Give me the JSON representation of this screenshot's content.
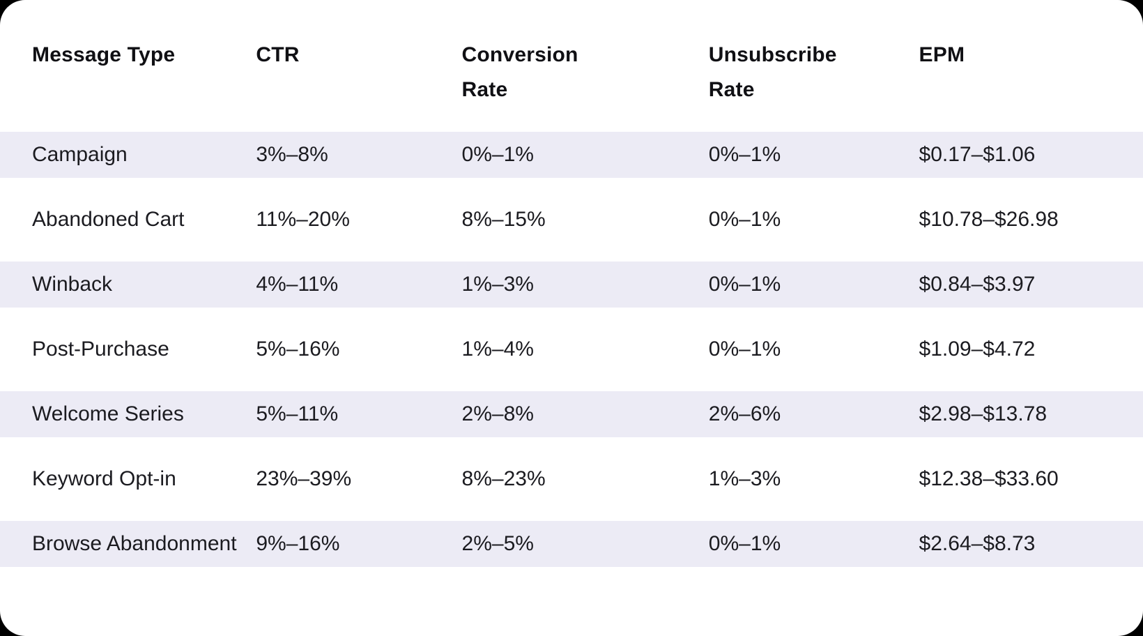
{
  "colors": {
    "page_background": "#000000",
    "card_background": "#ffffff",
    "row_stripe": "#ECEBF5",
    "header_text": "#101014",
    "body_text": "#1B1B20"
  },
  "header_display": {
    "message_type": "Message Type",
    "ctr": "CTR",
    "conversion_rate": "Conversion\nRate",
    "unsubscribe_rate": "Unsubscribe\nRate",
    "epm": "EPM"
  },
  "chart_data": {
    "type": "table",
    "columns": [
      "Message Type",
      "CTR",
      "Conversion Rate",
      "Unsubscribe Rate",
      "EPM"
    ],
    "rows": [
      [
        "Campaign",
        "3%–8%",
        "0%–1%",
        "0%–1%",
        "$0.17–$1.06"
      ],
      [
        "Abandoned Cart",
        "11%–20%",
        "8%–15%",
        "0%–1%",
        "$10.78–$26.98"
      ],
      [
        "Winback",
        "4%–11%",
        "1%–3%",
        "0%–1%",
        "$0.84–$3.97"
      ],
      [
        "Post-Purchase",
        "5%–16%",
        "1%–4%",
        "0%–1%",
        "$1.09–$4.72"
      ],
      [
        "Welcome Series",
        "5%–11%",
        "2%–8%",
        "2%–6%",
        "$2.98–$13.78"
      ],
      [
        "Keyword Opt-in",
        "23%–39%",
        "8%–23%",
        "1%–3%",
        "$12.38–$33.60"
      ],
      [
        "Browse Abandonment",
        "9%–16%",
        "2%–5%",
        "0%–1%",
        "$2.64–$8.73"
      ]
    ],
    "title": "",
    "layout": {
      "stripe_rows": "odd",
      "grid": false,
      "header_position": "top"
    }
  }
}
